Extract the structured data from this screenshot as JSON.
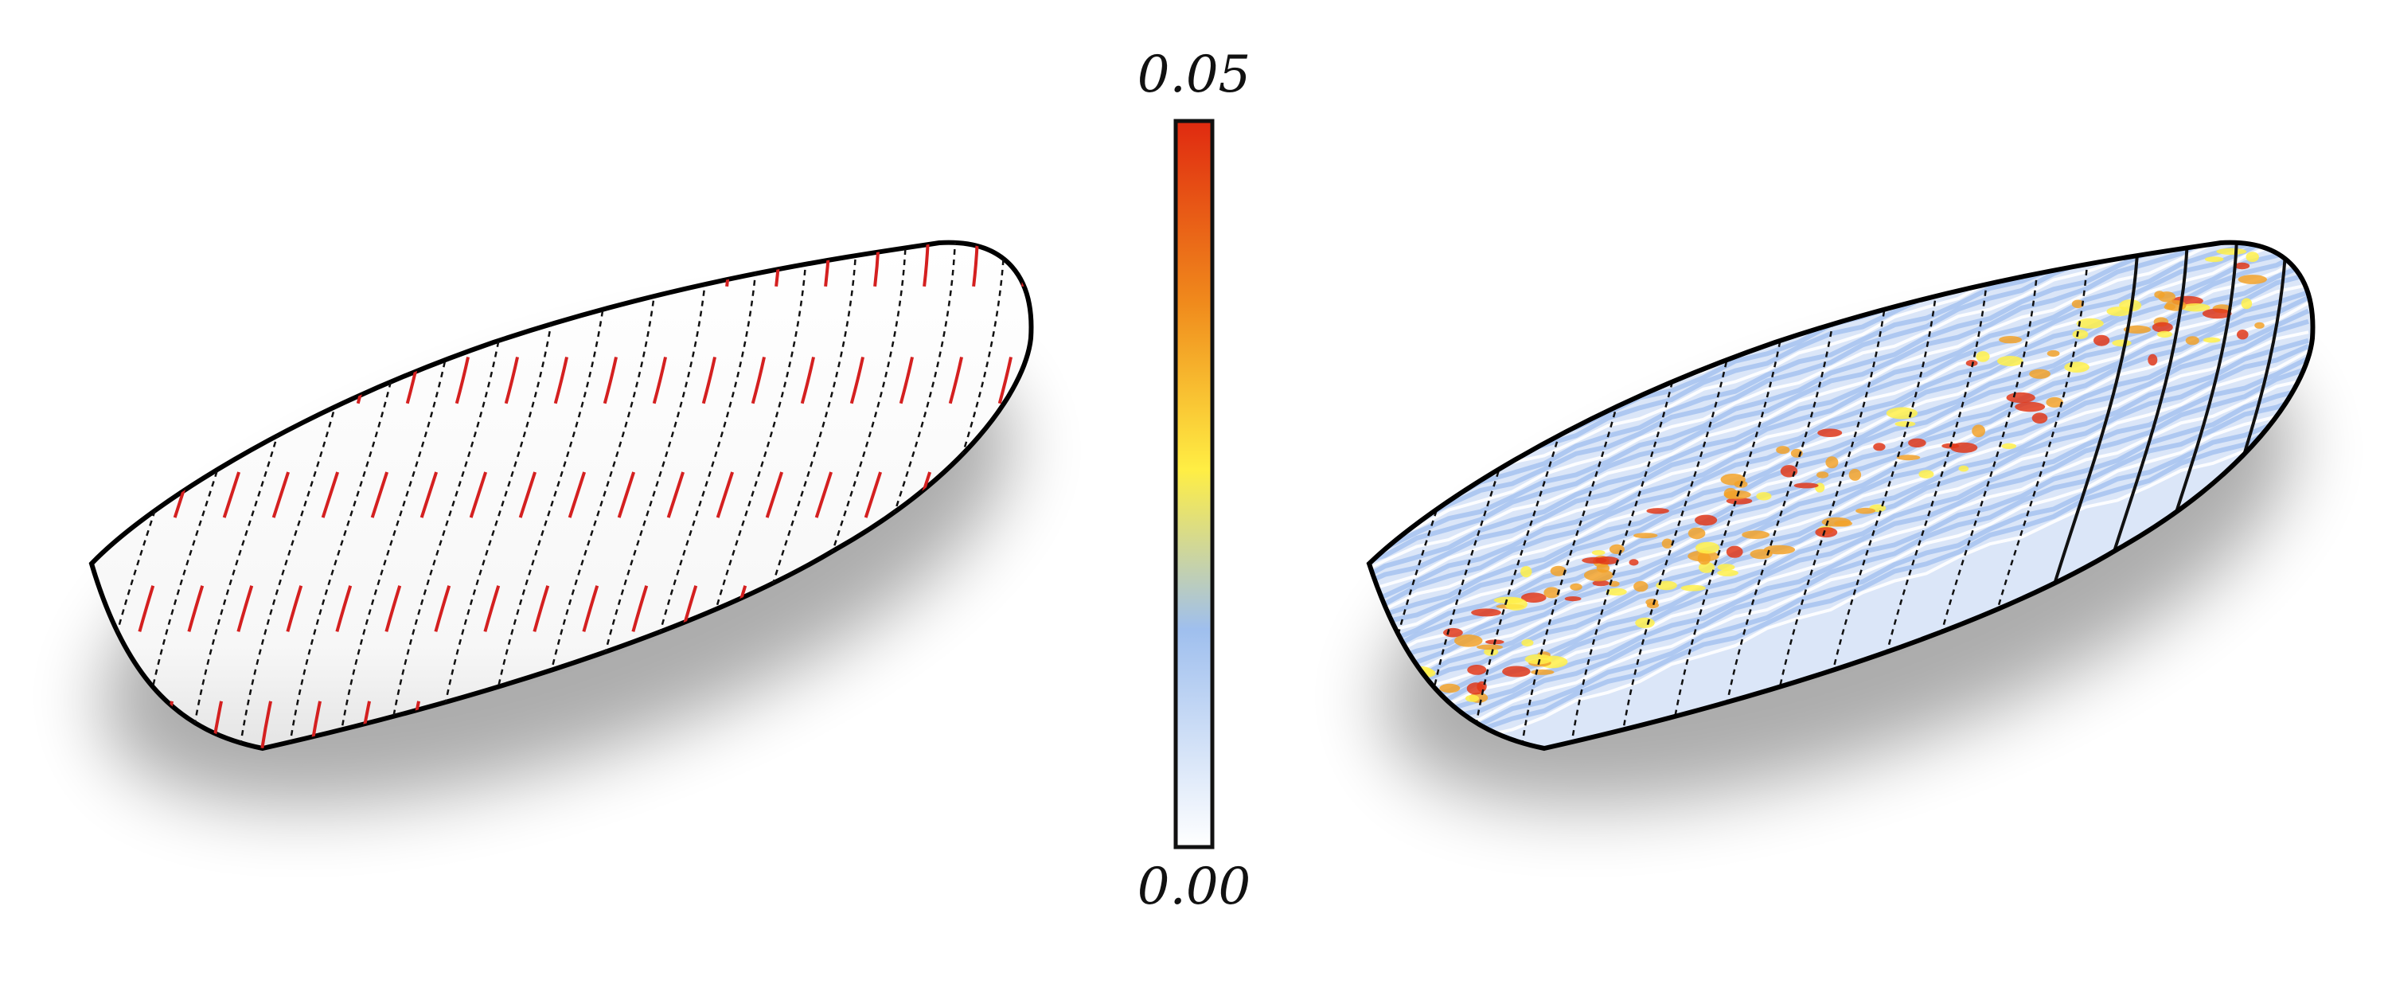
{
  "colorbar": {
    "max_label": "0.05",
    "min_label": "0.00",
    "max_value": 0.05,
    "min_value": 0.0,
    "stops": [
      "#ffffff",
      "#9fbfee",
      "#ffee44",
      "#f08a1c",
      "#e02a10"
    ]
  },
  "left_model": {
    "surface_color": "#ffffff",
    "seam_color": "#d42020",
    "segments": 19
  },
  "right_model": {
    "base_color": "#a9c4ef",
    "hot_colors": [
      "#fff04a",
      "#f2a22a",
      "#e0381a"
    ],
    "segments": 19
  }
}
